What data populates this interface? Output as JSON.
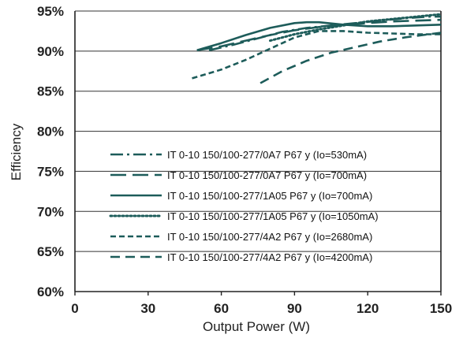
{
  "chart_data": {
    "type": "line",
    "title": "",
    "xlabel": "Output Power (W)",
    "ylabel": "Efficiency",
    "xlim": [
      0,
      150
    ],
    "ylim": [
      60,
      95
    ],
    "x_ticks": [
      0,
      30,
      60,
      90,
      120,
      150
    ],
    "x_tick_labels": [
      "0",
      "30",
      "60",
      "90",
      "120",
      "150"
    ],
    "y_ticks": [
      60,
      65,
      70,
      75,
      80,
      85,
      90,
      95
    ],
    "y_tick_labels": [
      "60%",
      "65%",
      "70%",
      "75%",
      "80%",
      "85%",
      "90%",
      "95%"
    ],
    "grid": "horizontal",
    "legend_position": "inside-lower-center",
    "line_color": "#1d5c5a",
    "series": [
      {
        "name": "IT 0-10 150/100-277/0A7 P67 y (Io=530mA)",
        "dash": "dash-dot",
        "x": [
          55,
          65,
          75,
          85,
          95,
          105,
          115,
          125,
          135,
          145,
          150
        ],
        "y": [
          90.1,
          90.8,
          91.6,
          92.4,
          92.9,
          93.2,
          93.5,
          93.8,
          94.1,
          94.3,
          94.3
        ]
      },
      {
        "name": "IT 0-10 150/100-277/0A7 P67 y (Io=700mA)",
        "dash": "long-dash",
        "x": [
          50,
          60,
          70,
          80,
          90,
          100,
          110,
          120,
          130,
          140,
          150
        ],
        "y": [
          90.1,
          90.6,
          91.3,
          92.0,
          92.6,
          93.0,
          93.3,
          93.5,
          93.7,
          93.8,
          93.9
        ]
      },
      {
        "name": "IT 0-10 150/100-277/1A05 P67 y (Io=700mA)",
        "dash": "solid",
        "x": [
          50,
          60,
          70,
          80,
          90,
          95,
          100,
          110,
          120,
          130,
          140,
          150
        ],
        "y": [
          90.1,
          91.0,
          92.0,
          92.9,
          93.5,
          93.6,
          93.6,
          93.3,
          93.1,
          93.1,
          93.2,
          93.3
        ]
      },
      {
        "name": "IT 0-10 150/100-277/1A05 P67 y (Io=1050mA)",
        "dash": "dotted",
        "x": [
          80,
          90,
          100,
          110,
          120,
          130,
          140,
          150
        ],
        "y": [
          91.3,
          92.1,
          92.7,
          93.2,
          93.7,
          94.0,
          94.3,
          94.6
        ]
      },
      {
        "name": "IT 0-10 150/100-277/4A2 P67 y (Io=2680mA)",
        "dash": "short-dash",
        "x": [
          48,
          60,
          70,
          80,
          90,
          100,
          110,
          120,
          130,
          140,
          150
        ],
        "y": [
          86.6,
          87.7,
          88.9,
          90.3,
          91.7,
          92.5,
          92.5,
          92.3,
          92.2,
          92.1,
          92.1
        ]
      },
      {
        "name": "IT 0-10 150/100-277/4A2 P67 y (Io=4200mA)",
        "dash": "medium-dash",
        "x": [
          76,
          85,
          95,
          105,
          115,
          125,
          135,
          145,
          150
        ],
        "y": [
          86.0,
          87.5,
          88.8,
          89.8,
          90.5,
          91.2,
          91.7,
          92.1,
          92.3
        ]
      }
    ]
  }
}
